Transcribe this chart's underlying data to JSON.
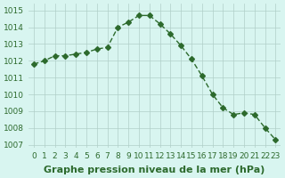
{
  "x": [
    0,
    1,
    2,
    3,
    4,
    5,
    6,
    7,
    8,
    9,
    10,
    11,
    12,
    13,
    14,
    15,
    16,
    17,
    18,
    19,
    20,
    21,
    22,
    23
  ],
  "y": [
    1011.8,
    1012.0,
    1012.3,
    1012.3,
    1012.4,
    1012.5,
    1012.7,
    1012.8,
    1014.0,
    1014.3,
    1014.7,
    1014.7,
    1014.2,
    1013.6,
    1012.9,
    1012.1,
    1011.1,
    1010.0,
    1009.2,
    1008.8,
    1008.9,
    1008.8,
    1008.0,
    1007.3
  ],
  "line_color": "#2d6a2d",
  "marker": "D",
  "marker_size": 3,
  "bg_color": "#d8f5f0",
  "grid_color": "#b0cfc8",
  "xlabel": "Graphe pression niveau de la mer (hPa)",
  "xlabel_fontsize": 8,
  "xlabel_color": "#2d6a2d",
  "ylabel_ticks": [
    1007,
    1008,
    1009,
    1010,
    1011,
    1012,
    1013,
    1014,
    1015
  ],
  "ylim": [
    1006.8,
    1015.4
  ],
  "xlim": [
    -0.5,
    23.5
  ],
  "tick_fontsize": 6.5,
  "tick_color": "#2d6a2d"
}
